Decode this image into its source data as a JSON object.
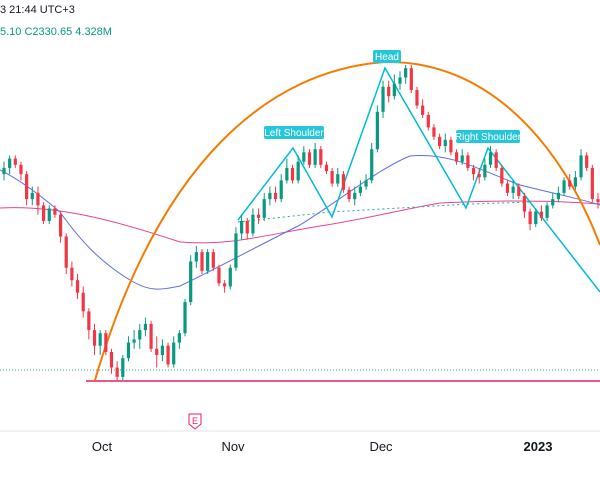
{
  "header": {
    "line1": "3 21:44 UTC+3",
    "line2_parts": [
      "5.10",
      "C2330.65",
      "4.328M"
    ]
  },
  "chart_data": {
    "type": "candlestick",
    "x_tick_labels": [
      {
        "label": "Oct",
        "bold": false
      },
      {
        "label": "Nov",
        "bold": false
      },
      {
        "label": "Dec",
        "bold": false
      },
      {
        "label": "2023",
        "bold": true
      }
    ],
    "earnings_marker": "E",
    "pattern": "Head and Shoulders",
    "annotations": [
      "Left Shoulder",
      "Head",
      "Right Shoulder"
    ],
    "candles": [
      [
        0,
        0.2,
        0.3,
        0.1,
        0.4
      ],
      [
        1,
        0.3,
        0.45,
        0.2,
        0.5
      ],
      [
        2,
        0.45,
        0.35,
        0.3,
        0.5
      ],
      [
        3,
        0.35,
        0.2,
        0.1,
        0.4
      ],
      [
        4,
        0.2,
        -0.2,
        -0.3,
        0.25
      ],
      [
        5,
        -0.2,
        -0.1,
        -0.3,
        0.0
      ],
      [
        6,
        -0.1,
        -0.3,
        -0.45,
        0.0
      ],
      [
        7,
        -0.3,
        -0.55,
        -0.6,
        -0.25
      ],
      [
        8,
        -0.55,
        -0.35,
        -0.6,
        -0.3
      ],
      [
        9,
        -0.35,
        -0.45,
        -0.5,
        -0.3
      ],
      [
        10,
        -0.45,
        -0.8,
        -0.9,
        -0.4
      ],
      [
        11,
        -0.8,
        -1.3,
        -1.4,
        -0.75
      ],
      [
        12,
        -1.3,
        -1.5,
        -1.6,
        -1.2
      ],
      [
        13,
        -1.5,
        -1.7,
        -1.8,
        -1.4
      ],
      [
        14,
        -1.7,
        -2.0,
        -2.1,
        -1.6
      ],
      [
        15,
        -2.0,
        -2.3,
        -2.45,
        -1.95
      ],
      [
        16,
        -2.3,
        -2.55,
        -2.7,
        -2.2
      ],
      [
        17,
        -2.55,
        -2.35,
        -2.7,
        -2.3
      ],
      [
        18,
        -2.35,
        -2.65,
        -2.7,
        -2.3
      ],
      [
        19,
        -2.65,
        -2.9,
        -3.0,
        -2.6
      ],
      [
        20,
        -2.9,
        -3.05,
        -3.1,
        -2.8
      ],
      [
        21,
        -3.05,
        -2.75,
        -3.1,
        -2.7
      ],
      [
        22,
        -2.75,
        -2.5,
        -2.8,
        -2.4
      ],
      [
        23,
        -2.5,
        -2.45,
        -2.6,
        -2.3
      ],
      [
        24,
        -2.45,
        -2.3,
        -2.6,
        -2.2
      ],
      [
        25,
        -2.3,
        -2.2,
        -2.4,
        -2.1
      ],
      [
        26,
        -2.2,
        -2.6,
        -2.65,
        -2.15
      ],
      [
        27,
        -2.6,
        -2.7,
        -2.9,
        -2.4
      ],
      [
        28,
        -2.7,
        -2.55,
        -2.8,
        -2.45
      ],
      [
        29,
        -2.55,
        -2.85,
        -2.9,
        -2.5
      ],
      [
        30,
        -2.85,
        -2.5,
        -2.9,
        -2.4
      ],
      [
        31,
        -2.5,
        -2.35,
        -2.6,
        -2.3
      ],
      [
        32,
        -2.35,
        -1.85,
        -2.4,
        -1.8
      ],
      [
        33,
        -1.85,
        -1.2,
        -1.9,
        -1.1
      ],
      [
        34,
        -1.2,
        -1.05,
        -1.3,
        -0.95
      ],
      [
        35,
        -1.05,
        -1.35,
        -1.4,
        -1.0
      ],
      [
        36,
        -1.35,
        -1.05,
        -1.4,
        -1.0
      ],
      [
        37,
        -1.05,
        -1.3,
        -1.35,
        -1.0
      ],
      [
        38,
        -1.3,
        -1.55,
        -1.6,
        -1.25
      ],
      [
        39,
        -1.55,
        -1.6,
        -1.7,
        -1.5
      ],
      [
        40,
        -1.6,
        -1.3,
        -1.65,
        -1.25
      ],
      [
        41,
        -1.3,
        -0.75,
        -1.35,
        -0.65
      ],
      [
        42,
        -0.75,
        -0.55,
        -0.85,
        -0.45
      ],
      [
        43,
        -0.55,
        -0.75,
        -0.85,
        -0.5
      ],
      [
        44,
        -0.75,
        -0.45,
        -0.8,
        -0.35
      ],
      [
        45,
        -0.45,
        -0.5,
        -0.6,
        -0.35
      ],
      [
        46,
        -0.5,
        -0.2,
        -0.55,
        -0.1
      ],
      [
        47,
        -0.2,
        -0.1,
        -0.3,
        0.0
      ],
      [
        48,
        -0.1,
        -0.2,
        -0.25,
        0.0
      ],
      [
        49,
        -0.2,
        0.1,
        -0.25,
        0.2
      ],
      [
        50,
        0.1,
        0.3,
        0.05,
        0.45
      ],
      [
        51,
        0.3,
        0.1,
        0.05,
        0.35
      ],
      [
        52,
        0.1,
        0.4,
        0.05,
        0.5
      ],
      [
        53,
        0.4,
        0.55,
        0.35,
        0.65
      ],
      [
        54,
        0.55,
        0.35,
        0.3,
        0.6
      ],
      [
        55,
        0.35,
        0.6,
        0.3,
        0.7
      ],
      [
        56,
        0.6,
        0.35,
        0.3,
        0.65
      ],
      [
        57,
        0.35,
        0.25,
        0.2,
        0.4
      ],
      [
        58,
        0.25,
        0.05,
        0.0,
        0.3
      ],
      [
        59,
        0.05,
        0.2,
        0.0,
        0.3
      ],
      [
        60,
        0.2,
        -0.05,
        -0.1,
        0.25
      ],
      [
        61,
        -0.05,
        -0.2,
        -0.25,
        0.0
      ],
      [
        62,
        -0.2,
        -0.1,
        -0.3,
        0.0
      ],
      [
        63,
        -0.1,
        0.0,
        -0.15,
        0.1
      ],
      [
        64,
        0.0,
        0.1,
        -0.05,
        0.2
      ],
      [
        65,
        0.1,
        0.6,
        0.05,
        0.7
      ],
      [
        66,
        0.6,
        1.2,
        0.55,
        1.3
      ],
      [
        67,
        1.2,
        1.6,
        1.1,
        1.7
      ],
      [
        68,
        1.6,
        1.45,
        1.35,
        1.7
      ],
      [
        69,
        1.45,
        1.65,
        1.4,
        1.8
      ],
      [
        70,
        1.65,
        1.75,
        1.55,
        1.85
      ],
      [
        71,
        1.75,
        1.9,
        1.65,
        1.95
      ],
      [
        72,
        1.9,
        1.55,
        1.5,
        1.95
      ],
      [
        73,
        1.55,
        1.3,
        1.25,
        1.6
      ],
      [
        74,
        1.3,
        1.15,
        1.1,
        1.4
      ],
      [
        75,
        1.15,
        0.95,
        0.9,
        1.2
      ],
      [
        76,
        0.95,
        0.8,
        0.75,
        1.0
      ],
      [
        77,
        0.8,
        0.65,
        0.6,
        0.85
      ],
      [
        78,
        0.65,
        0.75,
        0.55,
        0.85
      ],
      [
        79,
        0.75,
        0.55,
        0.5,
        0.8
      ],
      [
        80,
        0.55,
        0.4,
        0.35,
        0.6
      ],
      [
        81,
        0.4,
        0.5,
        0.35,
        0.6
      ],
      [
        82,
        0.5,
        0.3,
        0.25,
        0.55
      ],
      [
        83,
        0.3,
        0.2,
        0.1,
        0.35
      ],
      [
        84,
        0.2,
        0.15,
        0.05,
        0.3
      ],
      [
        85,
        0.15,
        0.35,
        0.1,
        0.45
      ],
      [
        86,
        0.35,
        0.55,
        0.3,
        0.65
      ],
      [
        87,
        0.55,
        0.3,
        0.25,
        0.6
      ],
      [
        88,
        0.3,
        0.05,
        0.0,
        0.35
      ],
      [
        89,
        0.05,
        -0.1,
        -0.15,
        0.1
      ],
      [
        90,
        -0.1,
        0.0,
        -0.2,
        0.1
      ],
      [
        91,
        0.0,
        -0.15,
        -0.2,
        0.05
      ],
      [
        92,
        -0.15,
        -0.4,
        -0.5,
        -0.1
      ],
      [
        93,
        -0.4,
        -0.6,
        -0.7,
        -0.35
      ],
      [
        94,
        -0.6,
        -0.4,
        -0.65,
        -0.35
      ],
      [
        95,
        -0.4,
        -0.5,
        -0.55,
        -0.3
      ],
      [
        96,
        -0.5,
        -0.3,
        -0.55,
        -0.25
      ],
      [
        97,
        -0.3,
        -0.2,
        -0.35,
        -0.1
      ],
      [
        98,
        -0.2,
        -0.1,
        -0.25,
        0.0
      ],
      [
        99,
        -0.1,
        0.1,
        -0.15,
        0.15
      ],
      [
        100,
        0.1,
        0.0,
        -0.05,
        0.2
      ],
      [
        101,
        0.0,
        0.15,
        -0.05,
        0.25
      ],
      [
        102,
        0.15,
        0.5,
        0.1,
        0.6
      ],
      [
        103,
        0.5,
        0.3,
        0.25,
        0.55
      ],
      [
        104,
        0.3,
        -0.2,
        -0.25,
        0.35
      ],
      [
        105,
        -0.2,
        -0.25,
        -0.35,
        -0.1
      ]
    ]
  }
}
